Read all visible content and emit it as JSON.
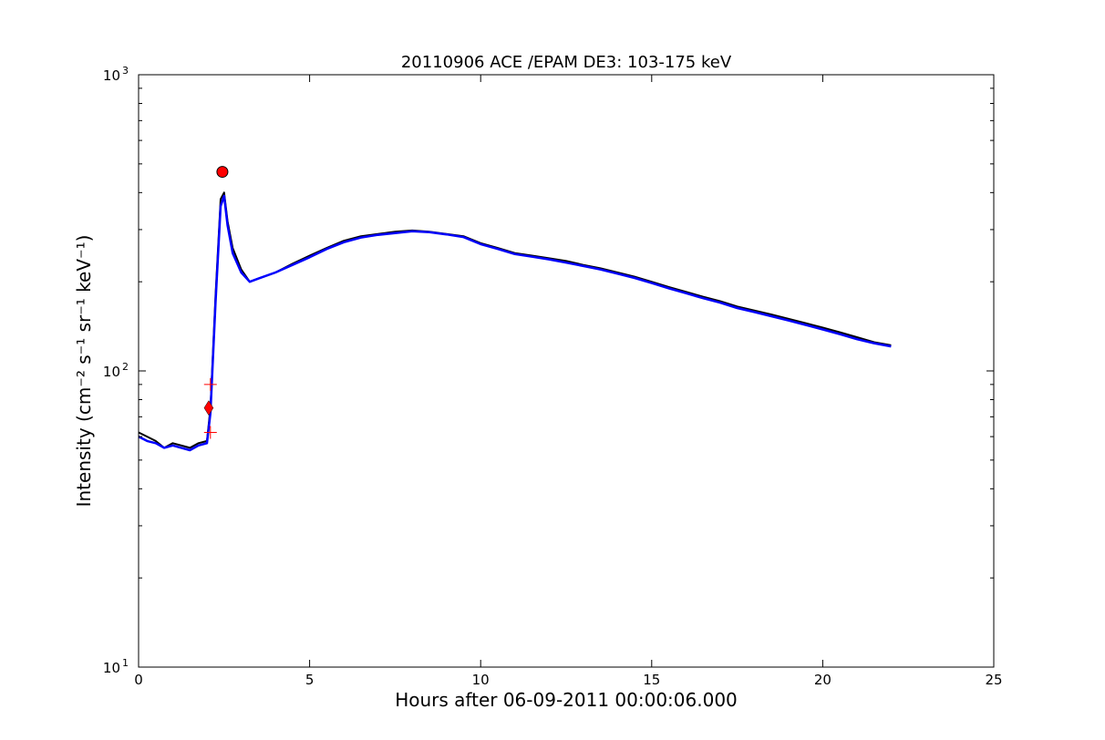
{
  "chart_data": {
    "type": "line",
    "title": "20110906 ACE /EPAM DE3: 103-175 keV",
    "xlabel": "Hours after 06-09-2011 00:00:06.000",
    "ylabel": "Intensity (cm⁻² s⁻¹ sr⁻¹ keV⁻¹)",
    "xlim": [
      0,
      25
    ],
    "ylim": [
      10,
      1000
    ],
    "yscale": "log",
    "grid": false,
    "x_ticks": [
      0,
      5,
      10,
      15,
      20,
      25
    ],
    "x_tick_labels": [
      "0",
      "5",
      "10",
      "15",
      "20",
      "25"
    ],
    "y_ticks": [
      10,
      100,
      1000
    ],
    "y_tick_labels": [
      "10",
      "10",
      "10"
    ],
    "y_tick_exponents": [
      "1",
      "2",
      "3"
    ],
    "series": [
      {
        "color": "#000000",
        "style": "noisy raw intensity",
        "x": [
          0,
          0.25,
          0.5,
          0.75,
          1.0,
          1.25,
          1.5,
          1.75,
          2.0,
          2.1,
          2.25,
          2.4,
          2.5,
          2.6,
          2.75,
          3.0,
          3.25,
          3.5,
          4.0,
          4.5,
          5.0,
          5.5,
          6.0,
          6.5,
          7.0,
          7.5,
          8.0,
          8.5,
          9.0,
          9.5,
          10.0,
          10.5,
          11.0,
          11.5,
          12.0,
          12.5,
          13.0,
          13.5,
          14.0,
          14.5,
          15.0,
          15.5,
          16.0,
          16.5,
          17.0,
          17.5,
          18.0,
          18.5,
          19.0,
          19.5,
          20.0,
          20.5,
          21.0,
          21.5,
          22.0
        ],
        "y": [
          62,
          60,
          58,
          55,
          57,
          56,
          55,
          57,
          58,
          75,
          180,
          380,
          400,
          320,
          260,
          220,
          200,
          205,
          215,
          230,
          245,
          260,
          275,
          285,
          290,
          295,
          298,
          295,
          290,
          285,
          270,
          260,
          250,
          245,
          240,
          235,
          228,
          222,
          215,
          208,
          200,
          192,
          185,
          178,
          172,
          165,
          160,
          155,
          150,
          145,
          140,
          135,
          130,
          125,
          122
        ]
      },
      {
        "color": "#0000ff",
        "style": "smoothed intensity",
        "x": [
          0,
          0.25,
          0.5,
          0.75,
          1.0,
          1.25,
          1.5,
          1.75,
          2.0,
          2.1,
          2.25,
          2.4,
          2.5,
          2.6,
          2.75,
          3.0,
          3.25,
          3.5,
          4.0,
          4.5,
          5.0,
          5.5,
          6.0,
          6.5,
          7.0,
          7.5,
          8.0,
          8.5,
          9.0,
          9.5,
          10.0,
          10.5,
          11.0,
          11.5,
          12.0,
          12.5,
          13.0,
          13.5,
          14.0,
          14.5,
          15.0,
          15.5,
          16.0,
          16.5,
          17.0,
          17.5,
          18.0,
          18.5,
          19.0,
          19.5,
          20.0,
          20.5,
          21.0,
          21.5,
          22.0
        ],
        "y": [
          60,
          58,
          57,
          55,
          56,
          55,
          54,
          56,
          57,
          72,
          170,
          360,
          390,
          310,
          250,
          215,
          200,
          205,
          215,
          228,
          242,
          258,
          272,
          282,
          288,
          292,
          296,
          294,
          289,
          283,
          268,
          258,
          248,
          243,
          238,
          232,
          226,
          220,
          213,
          206,
          198,
          190,
          183,
          176,
          170,
          163,
          158,
          153,
          148,
          143,
          138,
          133,
          128,
          124,
          121
        ]
      }
    ],
    "markers": [
      {
        "shape": "diamond",
        "color": "#ff0000",
        "x": 2.05,
        "y": 75
      },
      {
        "shape": "circle",
        "color": "#ff0000",
        "x": 2.45,
        "y": 470
      },
      {
        "shape": "plus",
        "color": "#ff0000",
        "x": 2.1,
        "y": 90
      },
      {
        "shape": "plus",
        "color": "#ff0000",
        "x": 2.1,
        "y": 62
      }
    ]
  }
}
